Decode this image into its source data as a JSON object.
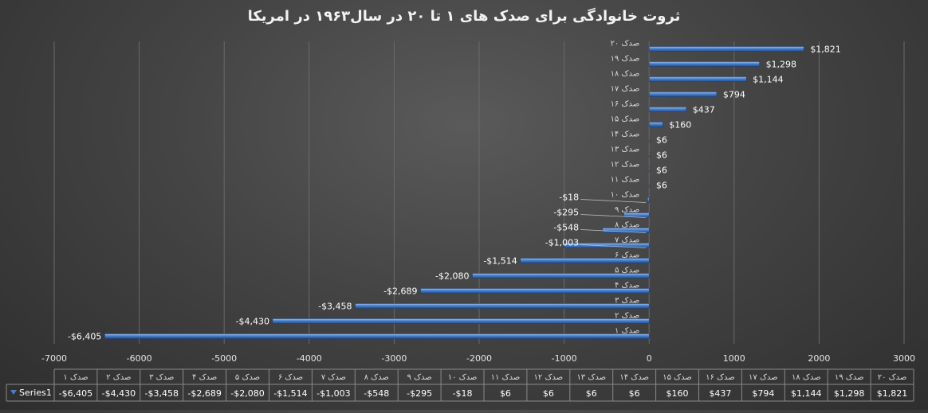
{
  "chart_data": {
    "type": "bar",
    "orientation": "horizontal",
    "title": "ثروت خانوادگی برای صدک های ۱ تا ۲۰ در سال۱۹۶۳ در امریکا",
    "categories": [
      "صدک ۱",
      "صدک ۲",
      "صدک ۳",
      "صدک ۴",
      "صدک ۵",
      "صدک ۶",
      "صدک ۷",
      "صدک ۸",
      "صدک ۹",
      "صدک ۱۰",
      "صدک ۱۱",
      "صدک ۱۲",
      "صدک ۱۳",
      "صدک ۱۴",
      "صدک ۱۵",
      "صدک ۱۶",
      "صدک ۱۷",
      "صدک ۱۸",
      "صدک ۱۹",
      "صدک ۲۰"
    ],
    "series": [
      {
        "name": "Series1",
        "values": [
          -6405,
          -4430,
          -3458,
          -2689,
          -2080,
          -1514,
          -1003,
          -548,
          -295,
          -18,
          6,
          6,
          6,
          6,
          160,
          437,
          794,
          1144,
          1298,
          1821
        ],
        "labels": [
          "-$6,405",
          "-$4,430",
          "-$3,458",
          "-$2,689",
          "-$2,080",
          "-$1,514",
          "-$1,003",
          "-$548",
          "-$295",
          "-$18",
          "$6",
          "$6",
          "$6",
          "$6",
          "$160",
          "$437",
          "$794",
          "$1,144",
          "$1,298",
          "$1,821"
        ]
      }
    ],
    "xlim": [
      -7000,
      3000
    ],
    "xticks": [
      -7000,
      -6000,
      -5000,
      -4000,
      -3000,
      -2000,
      -1000,
      0,
      1000,
      2000,
      3000
    ],
    "grid": true,
    "data_table": true,
    "bar_color": "#4a7fc8"
  }
}
